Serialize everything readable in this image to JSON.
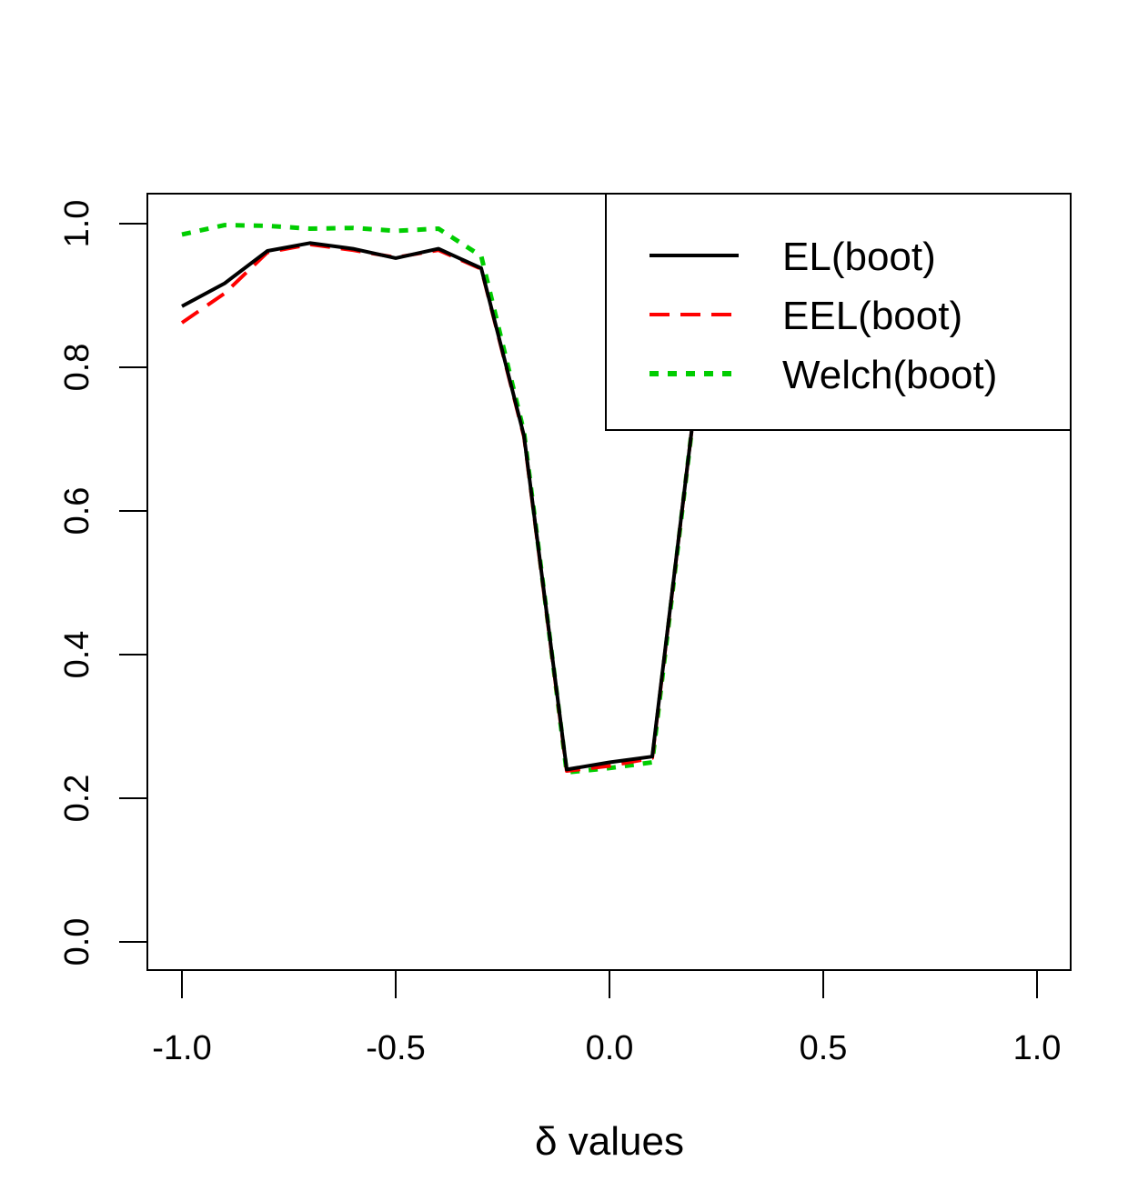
{
  "chart_data": {
    "type": "line",
    "title": "",
    "xlabel": "δ values",
    "ylabel": "",
    "xlim": [
      -1.0,
      1.0
    ],
    "ylim": [
      0.0,
      1.0
    ],
    "x_ticks": [
      "-1.0",
      "-0.5",
      "0.0",
      "0.5",
      "1.0"
    ],
    "y_ticks": [
      "0.0",
      "0.2",
      "0.4",
      "0.6",
      "0.8",
      "1.0"
    ],
    "x_tick_values": [
      -1.0,
      -0.5,
      0.0,
      0.5,
      1.0
    ],
    "y_tick_values": [
      0.0,
      0.2,
      0.4,
      0.6,
      0.8,
      1.0
    ],
    "legend_position": "top-right",
    "grid": false,
    "series": [
      {
        "name": "EL(boot)",
        "color": "#000000",
        "style": "solid",
        "x": [
          -1.0,
          -0.9,
          -0.8,
          -0.7,
          -0.6,
          -0.5,
          -0.4,
          -0.3,
          -0.2,
          -0.1,
          0.0,
          0.1,
          0.2
        ],
        "y": [
          0.885,
          0.917,
          0.962,
          0.973,
          0.965,
          0.952,
          0.965,
          0.938,
          0.705,
          0.24,
          0.25,
          0.258,
          0.75
        ]
      },
      {
        "name": "EEL(boot)",
        "color": "#ff0000",
        "style": "dashed",
        "x": [
          -1.0,
          -0.9,
          -0.8,
          -0.7,
          -0.6,
          -0.5,
          -0.4,
          -0.3,
          -0.2,
          -0.1,
          0.0,
          0.1,
          0.2
        ],
        "y": [
          0.862,
          0.903,
          0.96,
          0.971,
          0.963,
          0.953,
          0.963,
          0.937,
          0.703,
          0.238,
          0.245,
          0.256,
          0.75
        ]
      },
      {
        "name": "Welch(boot)",
        "color": "#00cd00",
        "style": "dotted",
        "x": [
          -1.0,
          -0.9,
          -0.8,
          -0.7,
          -0.6,
          -0.5,
          -0.4,
          -0.3,
          -0.2,
          -0.1,
          0.0,
          0.1,
          0.2
        ],
        "y": [
          0.985,
          0.998,
          0.997,
          0.993,
          0.994,
          0.99,
          0.993,
          0.955,
          0.71,
          0.236,
          0.242,
          0.25,
          0.75
        ]
      }
    ]
  }
}
